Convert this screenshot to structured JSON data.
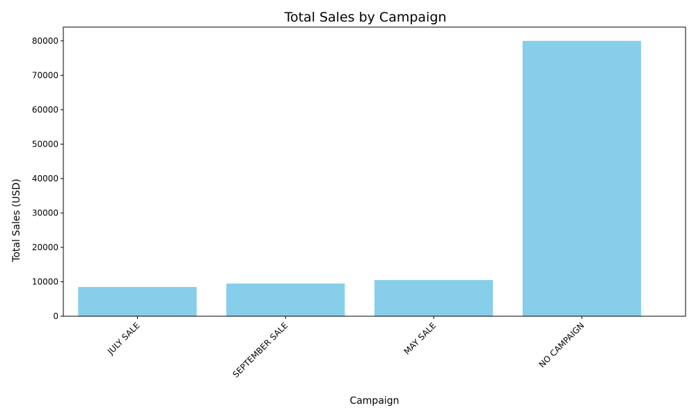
{
  "chart_data": {
    "type": "bar",
    "title": "Total Sales by Campaign",
    "xlabel": "Campaign",
    "ylabel": "Total Sales (USD)",
    "categories": [
      "JULY SALE",
      "SEPTEMBER SALE",
      "MAY SALE",
      "NO CAMPAIGN"
    ],
    "values": [
      8500,
      9500,
      10500,
      80000
    ],
    "ylim": [
      0,
      84000
    ],
    "yticks": [
      0,
      10000,
      20000,
      30000,
      40000,
      50000,
      60000,
      70000,
      80000
    ],
    "grid": false,
    "legend": "none",
    "bar_color": "#87CEEB",
    "xtick_rotation_deg": 45
  }
}
